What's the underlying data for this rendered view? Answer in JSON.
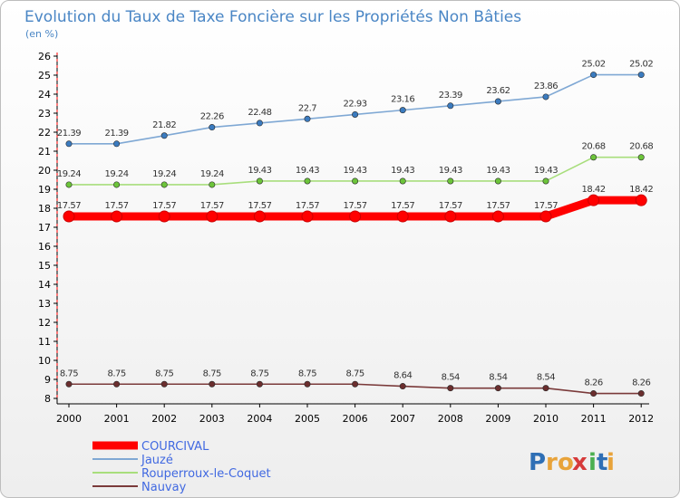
{
  "chart_data": {
    "type": "line",
    "title": "Evolution du Taux de Taxe Foncière sur les Propriétés Non Bâties",
    "subtitle": "(en %)",
    "x": [
      "2000",
      "2001",
      "2002",
      "2003",
      "2004",
      "2005",
      "2006",
      "2007",
      "2008",
      "2009",
      "2010",
      "2011",
      "2012"
    ],
    "y_ticks": [
      "8",
      "9",
      "10",
      "11",
      "12",
      "13",
      "14",
      "15",
      "16",
      "17",
      "18",
      "19",
      "20",
      "21",
      "22",
      "23",
      "24",
      "25",
      "26"
    ],
    "ylim": [
      8,
      26
    ],
    "grid": false,
    "legend_position": "bottom-left",
    "series": [
      {
        "name": "COURCIVAL",
        "color": "#ff0000",
        "values": [
          17.57,
          17.57,
          17.57,
          17.57,
          17.57,
          17.57,
          17.57,
          17.57,
          17.57,
          17.57,
          17.57,
          18.42,
          18.42
        ],
        "labels": [
          "17.57",
          "17.57",
          "17.57",
          "17.57",
          "17.57",
          "17.57",
          "17.57",
          "17.57",
          "17.57",
          "17.57",
          "17.57",
          "18.42",
          "18.42"
        ]
      },
      {
        "name": "Jauzé",
        "color": "#7fa8d4",
        "marker_color": "#3b7bbf",
        "values": [
          21.39,
          21.39,
          21.82,
          22.26,
          22.48,
          22.7,
          22.93,
          23.16,
          23.39,
          23.62,
          23.86,
          25.02,
          25.02
        ],
        "labels": [
          "21.39",
          "21.39",
          "21.82",
          "22.26",
          "22.48",
          "22.7",
          "22.93",
          "23.16",
          "23.39",
          "23.62",
          "23.86",
          "25.02",
          "25.02"
        ]
      },
      {
        "name": "Rouperroux-le-Coquet",
        "color": "#a8de7c",
        "marker_color": "#6cc43a",
        "values": [
          19.24,
          19.24,
          19.24,
          19.24,
          19.43,
          19.43,
          19.43,
          19.43,
          19.43,
          19.43,
          19.43,
          20.68,
          20.68
        ],
        "labels": [
          "19.24",
          "19.24",
          "19.24",
          "19.24",
          "19.43",
          "19.43",
          "19.43",
          "19.43",
          "19.43",
          "19.43",
          "19.43",
          "20.68",
          "20.68"
        ]
      },
      {
        "name": "Nauvay",
        "color": "#7a3a3a",
        "marker_color": "#6b2e2e",
        "values": [
          8.75,
          8.75,
          8.75,
          8.75,
          8.75,
          8.75,
          8.75,
          8.64,
          8.54,
          8.54,
          8.54,
          8.26,
          8.26
        ],
        "labels": [
          "8.75",
          "8.75",
          "8.75",
          "8.75",
          "8.75",
          "8.75",
          "8.75",
          "8.64",
          "8.54",
          "8.54",
          "8.54",
          "8.26",
          "8.26"
        ]
      }
    ]
  },
  "logo": {
    "letters": [
      "P",
      "r",
      "o",
      "x",
      "i",
      "t",
      "i"
    ],
    "colors": [
      "#2f6fb5",
      "#e8a33a",
      "#e8a33a",
      "#d63a3a",
      "#4caf50",
      "#2f6fb5",
      "#e8a33a"
    ]
  }
}
